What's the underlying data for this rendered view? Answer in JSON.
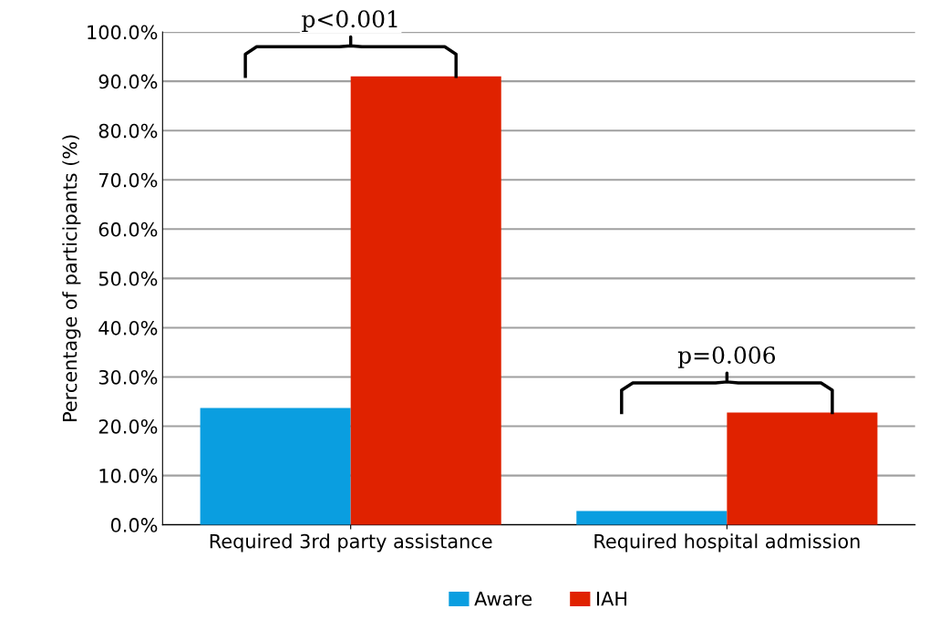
{
  "chart_data": {
    "type": "bar",
    "ylabel": "Percentage of participants (%)",
    "categories": [
      "Required 3rd party assistance",
      "Required hospital admission"
    ],
    "series": [
      {
        "name": "Aware",
        "color": "#0a9ee0",
        "values": [
          23.7,
          2.8
        ]
      },
      {
        "name": "IAH",
        "color": "#e02200",
        "values": [
          91.0,
          22.8
        ]
      }
    ],
    "ylim": [
      0,
      100
    ],
    "yticks": [
      {
        "value": 0,
        "label": "0.0%"
      },
      {
        "value": 10,
        "label": "10.0%"
      },
      {
        "value": 20,
        "label": "20.0%"
      },
      {
        "value": 30,
        "label": "30.0%"
      },
      {
        "value": 40,
        "label": "40.0%"
      },
      {
        "value": 50,
        "label": "50.0%"
      },
      {
        "value": 60,
        "label": "60.0%"
      },
      {
        "value": 70,
        "label": "70.0%"
      },
      {
        "value": 80,
        "label": "80.0%"
      },
      {
        "value": 90,
        "label": "90.0%"
      },
      {
        "value": 100,
        "label": "100.0%"
      }
    ],
    "grid": "y",
    "legend": "bottom",
    "annotations": [
      {
        "text": "p<0.001",
        "x": "Required 3rd party assistance",
        "y": 91.0
      },
      {
        "text": "p=0.006",
        "x": "Required hospital admission",
        "y": 22.8
      }
    ]
  }
}
